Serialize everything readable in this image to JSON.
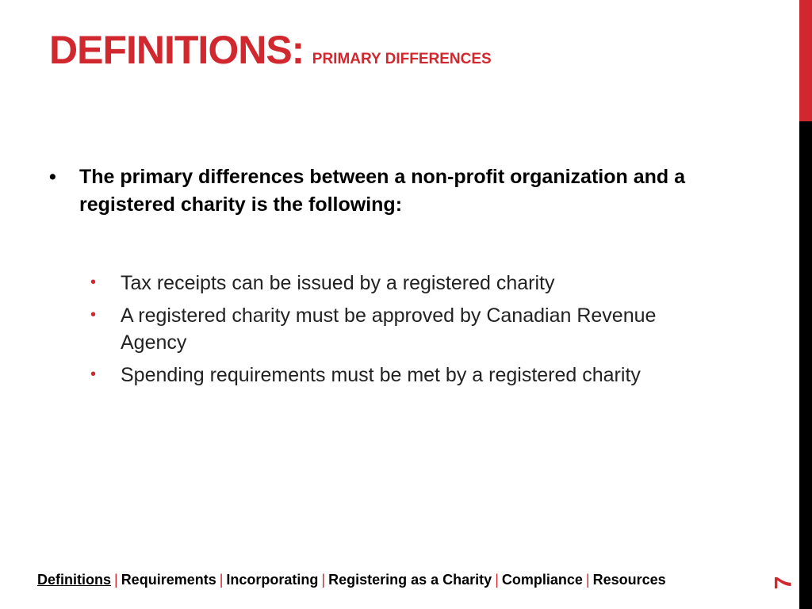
{
  "title": {
    "main": "DEFINITIONS:",
    "sub": "PRIMARY DIFFERENCES"
  },
  "body": {
    "intro": "The primary differences between a non-profit organization and a registered charity is the following:",
    "items": [
      "Tax receipts can be issued by a registered charity",
      "A registered charity must be approved by Canadian Revenue Agency",
      "Spending requirements must be met by a registered charity"
    ]
  },
  "footer": {
    "links": [
      "Definitions",
      "Requirements",
      "Incorporating",
      "Registering as a Charity",
      "Compliance",
      "Resources"
    ],
    "separator": "|",
    "active": "Definitions"
  },
  "page_number": "7",
  "colors": {
    "accent": "#d0282e",
    "dark": "#000000"
  }
}
